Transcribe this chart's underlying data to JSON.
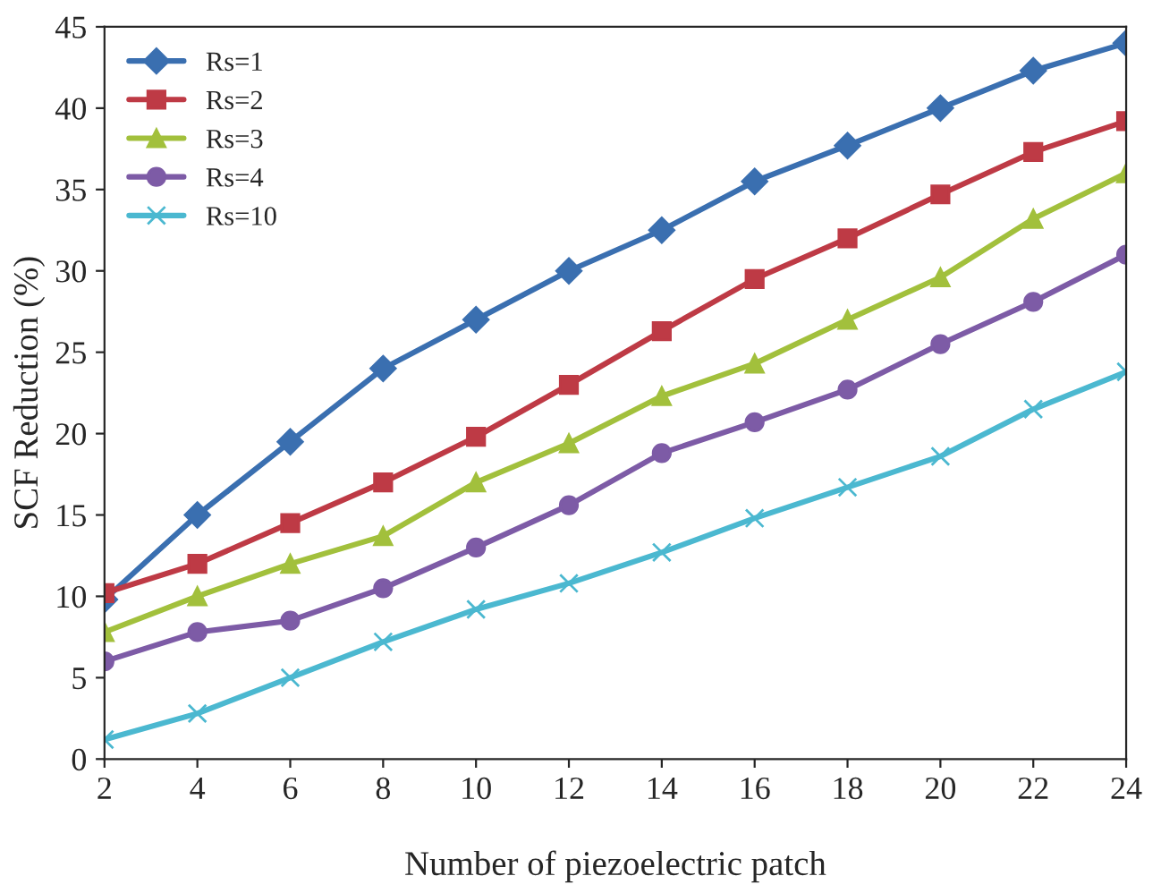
{
  "chart_data": {
    "type": "line",
    "xlabel": "Number of piezoelectric patch",
    "ylabel": "SCF Reduction (%)",
    "x": [
      2,
      4,
      6,
      8,
      10,
      12,
      14,
      16,
      18,
      20,
      22,
      24
    ],
    "series": [
      {
        "name": "Rs=1",
        "color": "#3a6fb0",
        "marker": "diamond",
        "values": [
          9.8,
          15,
          19.5,
          24,
          27,
          30,
          32.5,
          35.5,
          37.7,
          40,
          42.3,
          44
        ]
      },
      {
        "name": "Rs=2",
        "color": "#be3a45",
        "marker": "square",
        "values": [
          10.2,
          12,
          14.5,
          17,
          19.8,
          23,
          26.3,
          29.5,
          32,
          34.7,
          37.3,
          39.2
        ]
      },
      {
        "name": "Rs=3",
        "color": "#a2c03c",
        "marker": "triangle",
        "values": [
          7.8,
          10,
          12,
          13.7,
          17,
          19.4,
          22.3,
          24.3,
          27,
          29.6,
          33.2,
          36
        ]
      },
      {
        "name": "Rs=4",
        "color": "#7d5ba6",
        "marker": "circle",
        "values": [
          6,
          7.8,
          8.5,
          10.5,
          13,
          15.6,
          18.8,
          20.7,
          22.7,
          25.5,
          28.1,
          31
        ]
      },
      {
        "name": "Rs=10",
        "color": "#4bb8d0",
        "marker": "cross",
        "values": [
          1.2,
          2.8,
          5,
          7.2,
          9.2,
          10.8,
          12.7,
          14.8,
          16.7,
          18.6,
          21.5,
          23.8
        ]
      }
    ],
    "xlim": [
      2,
      24
    ],
    "xticks": [
      2,
      4,
      6,
      8,
      10,
      12,
      14,
      16,
      18,
      20,
      22,
      24
    ],
    "ylim": [
      0,
      45
    ],
    "yticks": [
      0,
      5,
      10,
      15,
      20,
      25,
      30,
      35,
      40,
      45
    ],
    "legend": "top left",
    "grid": false
  }
}
